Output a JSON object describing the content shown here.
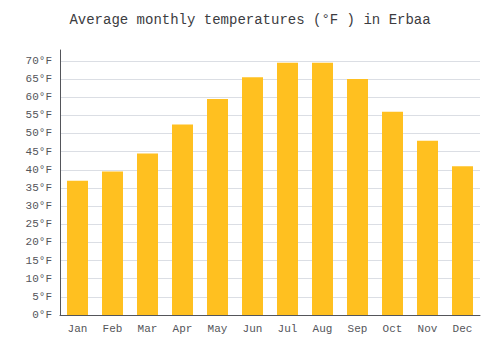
{
  "chart_data": {
    "type": "bar",
    "title": "Average monthly temperatures (°F ) in Erbaa",
    "categories": [
      "Jan",
      "Feb",
      "Mar",
      "Apr",
      "May",
      "Jun",
      "Jul",
      "Aug",
      "Sep",
      "Oct",
      "Nov",
      "Dec"
    ],
    "values": [
      37,
      39.5,
      44.5,
      52.5,
      59.5,
      65.5,
      69.5,
      69.5,
      65,
      56,
      48,
      41
    ],
    "color": "#FFC020",
    "ylim": [
      0,
      73
    ],
    "yticks": [
      {
        "value": 0,
        "label": "0°F"
      },
      {
        "value": 5,
        "label": "5°F"
      },
      {
        "value": 10,
        "label": "10°F"
      },
      {
        "value": 15,
        "label": "15°F"
      },
      {
        "value": 20,
        "label": "20°F"
      },
      {
        "value": 25,
        "label": "25°F"
      },
      {
        "value": 30,
        "label": "30°F"
      },
      {
        "value": 35,
        "label": "35°F"
      },
      {
        "value": 40,
        "label": "40°F"
      },
      {
        "value": 45,
        "label": "45°F"
      },
      {
        "value": 50,
        "label": "50°F"
      },
      {
        "value": 55,
        "label": "55°F"
      },
      {
        "value": 60,
        "label": "60°F"
      },
      {
        "value": 65,
        "label": "65°F"
      },
      {
        "value": 70,
        "label": "70°F"
      }
    ],
    "grid": true
  }
}
